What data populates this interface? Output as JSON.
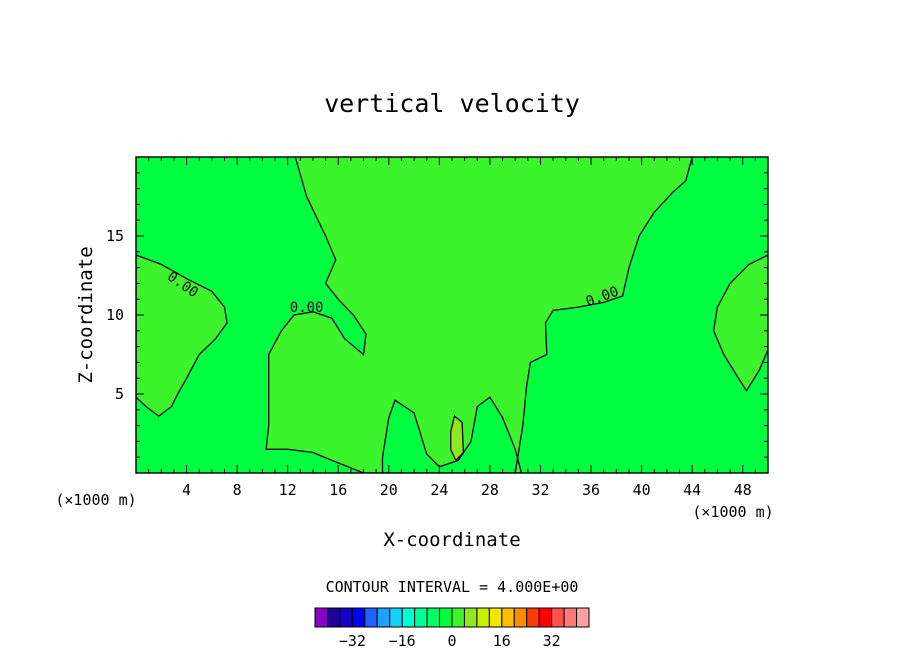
{
  "chart_data": {
    "type": "heatmap",
    "title": "vertical velocity",
    "xlabel": "X-coordinate",
    "ylabel": "Z-coordinate",
    "x_unit_left": "(×1000 m)",
    "x_unit_right": "(×1000 m)",
    "xlim": [
      0,
      50
    ],
    "ylim": [
      0,
      20
    ],
    "xticks": [
      4,
      8,
      12,
      16,
      20,
      24,
      28,
      32,
      36,
      40,
      44,
      48
    ],
    "yticks": [
      5,
      10,
      15
    ],
    "grid": false,
    "contour_interval_text": "CONTOUR INTERVAL = 4.000E+00",
    "contour_labels": [
      "0.00",
      "0.00",
      "0.00"
    ],
    "background_color": "#00ff40",
    "positive_region_color": "#3cf42c",
    "updraft_color": "#90e820",
    "zero_contours": [
      {
        "name": "left-lobe",
        "points": [
          [
            0,
            13.8
          ],
          [
            2,
            13.2
          ],
          [
            4,
            12.3
          ],
          [
            6,
            11.5
          ],
          [
            7,
            10.5
          ],
          [
            7.2,
            9.5
          ],
          [
            6.3,
            8.5
          ],
          [
            5,
            7.5
          ],
          [
            4,
            6
          ],
          [
            3.3,
            5
          ],
          [
            2.8,
            4.2
          ],
          [
            1.8,
            3.6
          ],
          [
            0.8,
            4.2
          ],
          [
            0,
            4.8
          ]
        ]
      },
      {
        "name": "central-updraft-region",
        "points": [
          [
            12.6,
            20
          ],
          [
            13.5,
            17.5
          ],
          [
            15,
            15
          ],
          [
            15.8,
            13.5
          ],
          [
            15,
            12
          ],
          [
            16,
            11
          ],
          [
            17.2,
            10
          ],
          [
            18.2,
            8.8
          ],
          [
            18,
            7.5
          ],
          [
            16.5,
            8.5
          ],
          [
            15.5,
            9.8
          ],
          [
            14,
            10.2
          ],
          [
            12.5,
            10
          ],
          [
            11.5,
            9
          ],
          [
            10.5,
            7.5
          ],
          [
            10.5,
            3
          ],
          [
            10.3,
            1.5
          ],
          [
            12,
            1.5
          ],
          [
            14,
            1.3
          ],
          [
            15.5,
            0.8
          ],
          [
            18,
            0
          ],
          [
            30.5,
            0
          ],
          [
            30,
            1.5
          ],
          [
            29,
            3.5
          ],
          [
            28,
            4.8
          ],
          [
            27,
            4.2
          ],
          [
            26.5,
            2
          ],
          [
            25.5,
            0.8
          ],
          [
            24,
            0.4
          ],
          [
            23,
            1.2
          ],
          [
            22,
            3.8
          ],
          [
            20.5,
            4.6
          ],
          [
            20,
            3.5
          ],
          [
            19.5,
            1
          ],
          [
            19.5,
            0
          ],
          [
            30,
            0
          ],
          [
            30.6,
            3
          ],
          [
            30.9,
            5.5
          ],
          [
            31.2,
            7
          ],
          [
            32.5,
            7.5
          ],
          [
            32.4,
            9.5
          ],
          [
            33,
            10.3
          ],
          [
            35,
            10.5
          ],
          [
            37,
            10.8
          ],
          [
            38.5,
            11.2
          ],
          [
            39,
            13
          ],
          [
            39.8,
            15
          ],
          [
            41,
            16.5
          ],
          [
            42.5,
            17.8
          ],
          [
            43.5,
            18.5
          ],
          [
            44,
            20
          ]
        ]
      },
      {
        "name": "right-lobe",
        "points": [
          [
            50,
            13.8
          ],
          [
            48.5,
            13.2
          ],
          [
            47,
            12
          ],
          [
            46,
            10.5
          ],
          [
            45.7,
            9
          ],
          [
            46.5,
            7.5
          ],
          [
            47.5,
            6.2
          ],
          [
            48.3,
            5.2
          ],
          [
            49.3,
            6.5
          ],
          [
            50,
            7.8
          ]
        ]
      },
      {
        "name": "updraft-core",
        "points": [
          [
            24.9,
            2.6
          ],
          [
            25.2,
            3.6
          ],
          [
            25.8,
            3.2
          ],
          [
            25.9,
            1.3
          ],
          [
            25.3,
            0.8
          ],
          [
            24.9,
            1.5
          ]
        ]
      }
    ],
    "colorbar": {
      "colors": [
        "#8c00c8",
        "#1e0096",
        "#1400c8",
        "#0000ff",
        "#1e64ff",
        "#1ea0ff",
        "#14d2ff",
        "#00ffd2",
        "#00ff96",
        "#00ff64",
        "#00ff40",
        "#3cf42c",
        "#90e820",
        "#c8f000",
        "#f0e600",
        "#ffbe00",
        "#ff8c00",
        "#ff3c00",
        "#ff0000",
        "#ff5050",
        "#ff7878",
        "#ffa0a0"
      ],
      "tick_values": [
        -32,
        -16,
        0,
        16,
        32
      ],
      "tick_labels": [
        "−32",
        "−16",
        "0",
        "16",
        "32"
      ],
      "vmin": -44,
      "vmax": 44
    }
  }
}
